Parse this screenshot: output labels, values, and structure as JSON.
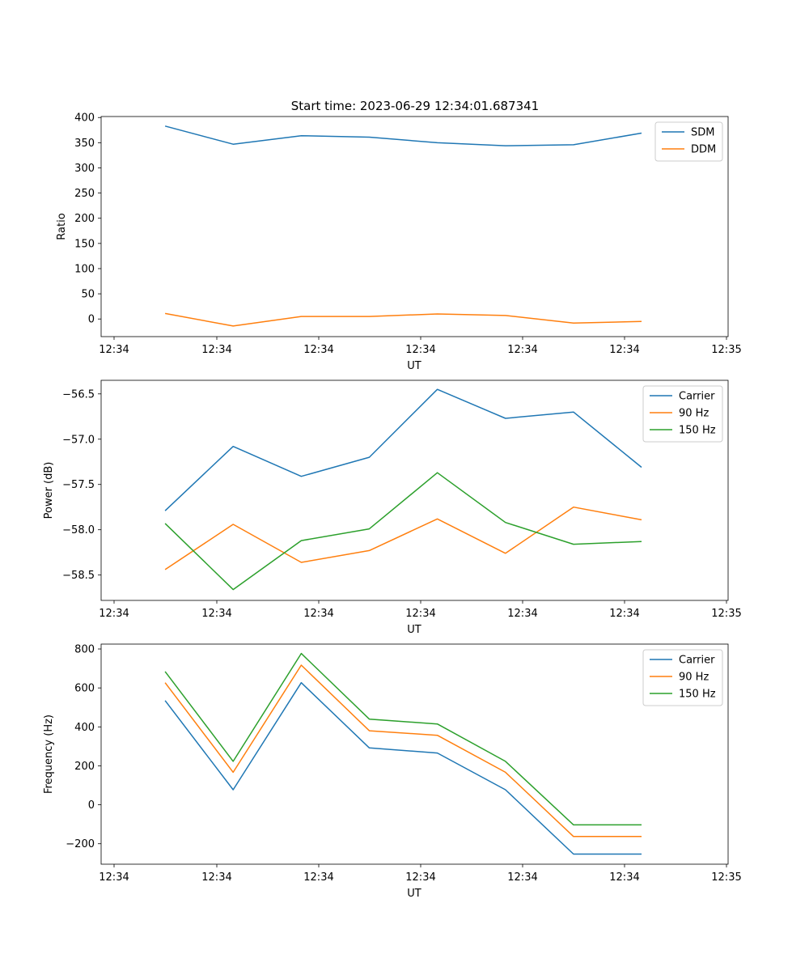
{
  "title": "Start time: 2023-06-29 12:34:01.687341",
  "chart_data": [
    {
      "type": "line",
      "xlabel": "UT",
      "ylabel": "Ratio",
      "x_tick_labels": [
        "12:34",
        "12:34",
        "12:34",
        "12:34",
        "12:34",
        "12:34",
        "12:34"
      ],
      "x_end_tick_label": "12:35",
      "ylim": [
        -35,
        402
      ],
      "yticks": [
        0,
        50,
        100,
        150,
        200,
        250,
        300,
        350,
        400
      ],
      "ytick_labels": [
        "0",
        "50",
        "100",
        "150",
        "200",
        "250",
        "300",
        "350",
        "400"
      ],
      "legend_position": "top-right",
      "grid": false,
      "series": [
        {
          "name": "SDM",
          "color": "#1f77b4",
          "values": [
            383,
            347,
            364,
            361,
            350,
            344,
            346,
            369
          ]
        },
        {
          "name": "DDM",
          "color": "#ff7f0e",
          "values": [
            11,
            -14,
            5,
            5,
            10,
            7,
            -8,
            -5
          ]
        }
      ]
    },
    {
      "type": "line",
      "xlabel": "UT",
      "ylabel": "Power (dB)",
      "x_tick_labels": [
        "12:34",
        "12:34",
        "12:34",
        "12:34",
        "12:34",
        "12:34",
        "12:34"
      ],
      "x_end_tick_label": "12:35",
      "ylim": [
        -58.78,
        -56.35
      ],
      "yticks": [
        -58.5,
        -58.0,
        -57.5,
        -57.0,
        -56.5
      ],
      "ytick_labels": [
        "−58.5",
        "−58.0",
        "−57.5",
        "−57.0",
        "−56.5"
      ],
      "legend_position": "top-right",
      "grid": false,
      "series": [
        {
          "name": "Carrier",
          "color": "#1f77b4",
          "values": [
            -57.79,
            -57.08,
            -57.41,
            -57.2,
            -56.45,
            -56.77,
            -56.7,
            -57.31
          ]
        },
        {
          "name": "90 Hz",
          "color": "#ff7f0e",
          "values": [
            -58.44,
            -57.94,
            -58.36,
            -58.23,
            -57.88,
            -58.26,
            -57.75,
            -57.89
          ]
        },
        {
          "name": "150 Hz",
          "color": "#2ca02c",
          "values": [
            -57.93,
            -58.66,
            -58.12,
            -57.99,
            -57.37,
            -57.92,
            -58.16,
            -58.13
          ]
        }
      ]
    },
    {
      "type": "line",
      "xlabel": "UT",
      "ylabel": "Frequency (Hz)",
      "x_tick_labels": [
        "12:34",
        "12:34",
        "12:34",
        "12:34",
        "12:34",
        "12:34",
        "12:34"
      ],
      "x_end_tick_label": "12:35",
      "ylim": [
        -305,
        825
      ],
      "yticks": [
        -200,
        0,
        200,
        400,
        600,
        800
      ],
      "ytick_labels": [
        "−200",
        "0",
        "200",
        "400",
        "600",
        "800"
      ],
      "legend_position": "top-right",
      "grid": false,
      "series": [
        {
          "name": "Carrier",
          "color": "#1f77b4",
          "values": [
            535,
            77,
            627,
            292,
            266,
            77,
            -253,
            -253
          ]
        },
        {
          "name": "90 Hz",
          "color": "#ff7f0e",
          "values": [
            627,
            167,
            717,
            380,
            357,
            167,
            -163,
            -163
          ]
        },
        {
          "name": "150 Hz",
          "color": "#2ca02c",
          "values": [
            684,
            223,
            777,
            440,
            415,
            223,
            -103,
            -103
          ]
        }
      ]
    }
  ]
}
